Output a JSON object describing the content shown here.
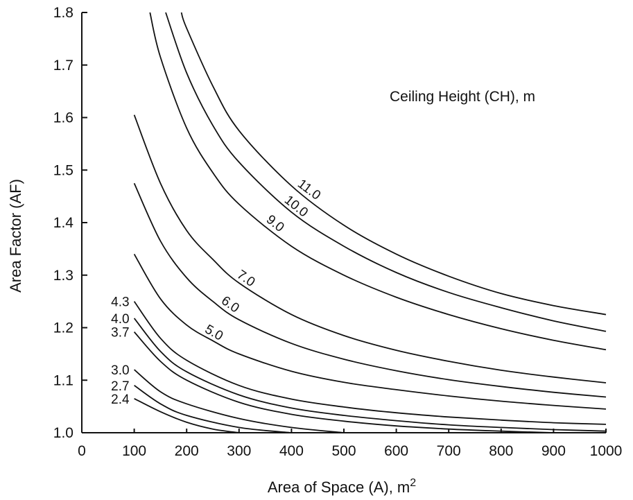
{
  "chart_data": {
    "type": "line",
    "title": "",
    "legend_title": "Ceiling Height (CH), m",
    "xlabel": "Area of Space (A), m",
    "xlabel_sup": "2",
    "ylabel": "Area Factor (AF)",
    "xlim": [
      0,
      1000
    ],
    "ylim": [
      1.0,
      1.8
    ],
    "x_ticks": [
      "0",
      "100",
      "200",
      "300",
      "400",
      "500",
      "600",
      "700",
      "800",
      "900",
      "1000"
    ],
    "y_ticks": [
      "1.0",
      "1.1",
      "1.2",
      "1.3",
      "1.4",
      "1.5",
      "1.6",
      "1.7",
      "1.8"
    ],
    "grid": false,
    "series": [
      {
        "name": "2.4",
        "x": [
          100,
          150,
          200,
          250,
          300
        ],
        "values": [
          1.065,
          1.04,
          1.02,
          1.007,
          1.0
        ]
      },
      {
        "name": "2.7",
        "x": [
          100,
          150,
          200,
          300,
          400
        ],
        "values": [
          1.09,
          1.055,
          1.033,
          1.01,
          1.0
        ]
      },
      {
        "name": "3.0",
        "x": [
          100,
          150,
          200,
          300,
          400,
          500
        ],
        "values": [
          1.12,
          1.078,
          1.055,
          1.027,
          1.01,
          1.0
        ]
      },
      {
        "name": "3.7",
        "x": [
          100,
          150,
          200,
          300,
          400,
          500,
          600,
          700,
          800,
          900
        ],
        "values": [
          1.192,
          1.136,
          1.1,
          1.058,
          1.035,
          1.022,
          1.013,
          1.007,
          1.003,
          1.0
        ]
      },
      {
        "name": "4.0",
        "x": [
          100,
          150,
          200,
          300,
          400,
          500,
          600,
          700,
          800,
          900,
          1000
        ],
        "values": [
          1.218,
          1.155,
          1.116,
          1.072,
          1.047,
          1.033,
          1.023,
          1.015,
          1.01,
          1.006,
          1.003
        ]
      },
      {
        "name": "4.3",
        "x": [
          100,
          150,
          200,
          300,
          400,
          500,
          600,
          700,
          800,
          900,
          1000
        ],
        "values": [
          1.25,
          1.18,
          1.138,
          1.09,
          1.064,
          1.049,
          1.038,
          1.03,
          1.024,
          1.019,
          1.016
        ]
      },
      {
        "name": "5.0",
        "x": [
          100,
          150,
          200,
          250,
          300,
          400,
          500,
          600,
          700,
          800,
          900,
          1000
        ],
        "values": [
          1.34,
          1.255,
          1.205,
          1.175,
          1.15,
          1.117,
          1.096,
          1.082,
          1.07,
          1.06,
          1.052,
          1.045
        ]
      },
      {
        "name": "6.0",
        "x": [
          100,
          150,
          200,
          250,
          300,
          400,
          500,
          600,
          700,
          800,
          900,
          1000
        ],
        "values": [
          1.475,
          1.365,
          1.295,
          1.25,
          1.215,
          1.17,
          1.14,
          1.118,
          1.101,
          1.088,
          1.077,
          1.068
        ]
      },
      {
        "name": "7.0",
        "x": [
          100,
          150,
          200,
          250,
          300,
          400,
          500,
          600,
          700,
          800,
          900,
          1000
        ],
        "values": [
          1.605,
          1.475,
          1.385,
          1.33,
          1.285,
          1.225,
          1.185,
          1.157,
          1.136,
          1.119,
          1.106,
          1.095
        ]
      },
      {
        "name": "9.0",
        "x": [
          130,
          150,
          200,
          250,
          300,
          400,
          500,
          600,
          700,
          800,
          900,
          1000
        ],
        "values": [
          1.8,
          1.715,
          1.58,
          1.495,
          1.435,
          1.355,
          1.3,
          1.258,
          1.225,
          1.198,
          1.176,
          1.158
        ]
      },
      {
        "name": "10.0",
        "x": [
          160,
          200,
          250,
          300,
          400,
          500,
          600,
          700,
          800,
          900,
          1000
        ],
        "values": [
          1.8,
          1.685,
          1.585,
          1.515,
          1.42,
          1.355,
          1.305,
          1.267,
          1.238,
          1.213,
          1.193
        ]
      },
      {
        "name": "11.0",
        "x": [
          190,
          200,
          250,
          300,
          400,
          500,
          600,
          700,
          800,
          900,
          1000
        ],
        "values": [
          1.8,
          1.77,
          1.66,
          1.575,
          1.47,
          1.395,
          1.34,
          1.298,
          1.265,
          1.242,
          1.225
        ]
      }
    ]
  }
}
